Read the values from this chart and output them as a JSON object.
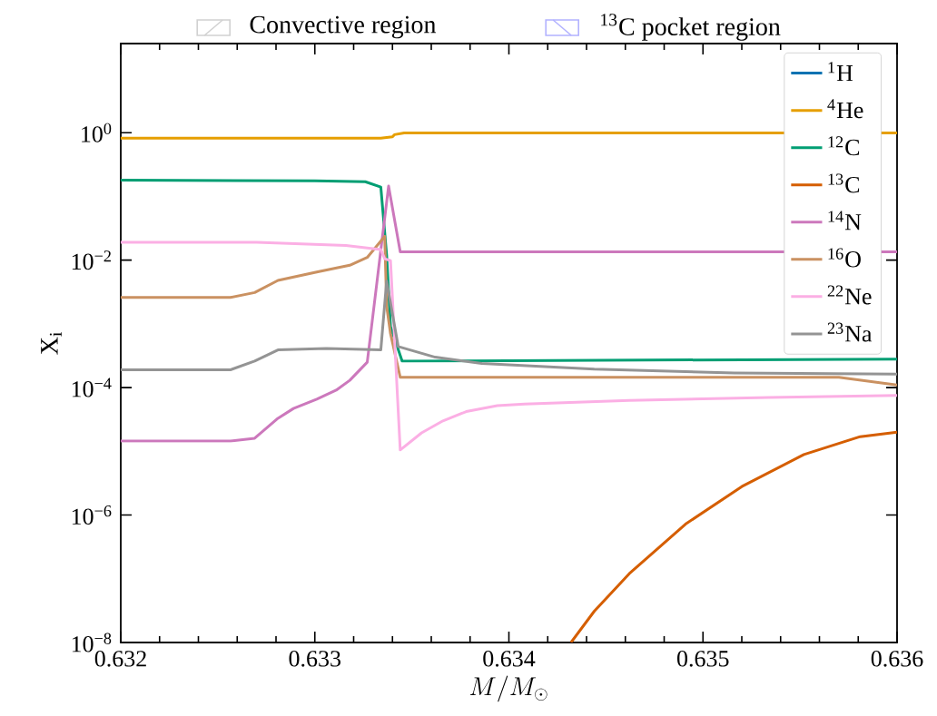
{
  "chart_data": {
    "type": "line",
    "xlabel": "M/M_{\\odot}",
    "ylabel": "X$_{i}$",
    "log": "y",
    "legend": "top right",
    "annotations": [
      "Convective region",
      "$^{13}$C pocket region"
    ],
    "xlim": [
      0.632,
      0.636
    ],
    "ylim": [
      1e-08,
      25
    ],
    "xticks": [
      0.632,
      {
        "value": 0.6322,
        "label": null
      },
      {
        "value": 0.6324,
        "label": null
      },
      {
        "value": 0.6326,
        "label": null
      },
      {
        "value": 0.6328,
        "label": null
      },
      0.633,
      {
        "value": 0.6332,
        "label": null
      },
      {
        "value": 0.6334,
        "label": null
      },
      {
        "value": 0.6336,
        "label": null
      },
      {
        "value": 0.6338,
        "label": null
      },
      0.634,
      {
        "value": 0.6342,
        "label": null
      },
      {
        "value": 0.6344,
        "label": null
      },
      {
        "value": 0.6346,
        "label": null
      },
      {
        "value": 0.6348,
        "label": null
      },
      0.635,
      {
        "value": 0.6352,
        "label": null
      },
      {
        "value": 0.6354,
        "label": null
      },
      {
        "value": 0.6356,
        "label": null
      },
      {
        "value": 0.6358,
        "label": null
      },
      0.636
    ],
    "yticks": [
      {
        "value": 1e-08,
        "label": "10$^{−8}$"
      },
      {
        "value": 1e-06,
        "label": "10$^{−6}$"
      },
      {
        "value": 0.0001,
        "label": "10$^{−4}$"
      },
      {
        "value": 0.01,
        "label": "10$^{−2}$"
      },
      {
        "value": 1,
        "label": "10$^{0}$"
      }
    ],
    "series": [
      {
        "name": "$^{1}$H",
        "color": "#0072b2"
      },
      {
        "name": "$^{4}$He",
        "color": "#e69f00",
        "x": [
          0.632,
          0.63334,
          0.6334,
          0.63341,
          0.63346,
          0.636
        ],
        "values": [
          0.82,
          0.82,
          0.86,
          0.93,
          0.99,
          0.99
        ]
      },
      {
        "name": "$^{12}$C",
        "color": "#009e73",
        "x": [
          0.632,
          0.633,
          0.63326,
          0.63334,
          0.63337,
          0.63339,
          0.63345,
          0.636
        ],
        "values": [
          0.18,
          0.175,
          0.17,
          0.14,
          0.012,
          0.0009,
          0.00026,
          0.00028
        ]
      },
      {
        "name": "$^{13}$C",
        "color": "#d55e00",
        "x": [
          0.63432,
          0.63444,
          0.63462,
          0.63491,
          0.6352,
          0.63552,
          0.63581,
          0.636
        ],
        "values": [
          1e-08,
          3.1e-08,
          1.2e-07,
          7.2e-07,
          2.8e-06,
          8.9e-06,
          1.7e-05,
          2e-05
        ]
      },
      {
        "name": "$^{14}$N",
        "color": "#cc78bc",
        "x": [
          0.632,
          0.632565,
          0.63269,
          0.63281,
          0.63289,
          0.63301,
          0.63311,
          0.63318,
          0.63327,
          0.63338,
          0.63344,
          0.636
        ],
        "values": [
          1.45e-05,
          1.45e-05,
          1.6e-05,
          3.3e-05,
          4.7e-05,
          6.6e-05,
          9.1e-05,
          0.00013,
          0.00025,
          0.145,
          0.0135,
          0.0135
        ]
      },
      {
        "name": "$^{16}$O",
        "color": "#ca9161",
        "x": [
          0.632,
          0.632565,
          0.63269,
          0.63281,
          0.63301,
          0.63318,
          0.63327,
          0.63336,
          0.63337,
          0.63339,
          0.63344,
          0.6357,
          0.636
        ],
        "values": [
          0.0026,
          0.0026,
          0.0031,
          0.0048,
          0.0065,
          0.0083,
          0.011,
          0.0236,
          0.0019,
          0.0007,
          0.000145,
          0.000145,
          0.00011
        ]
      },
      {
        "name": "$^{22}$Ne",
        "color": "#fbafe4",
        "x": [
          0.632,
          0.6327,
          0.63316,
          0.63334,
          0.63336,
          0.63339,
          0.63344,
          0.63355,
          0.63366,
          0.63378,
          0.63394,
          0.63408,
          0.63462,
          0.63534,
          0.636
        ],
        "values": [
          0.019,
          0.019,
          0.017,
          0.0146,
          0.0105,
          0.0098,
          1.05e-05,
          1.95e-05,
          3e-05,
          4.2e-05,
          5.2e-05,
          5.5e-05,
          6.3e-05,
          7e-05,
          7.5e-05
        ]
      },
      {
        "name": "$^{23}$Na",
        "color": "#949494",
        "x": [
          0.632,
          0.632565,
          0.63269,
          0.63281,
          0.63306,
          0.63334,
          0.63337,
          0.63343,
          0.63362,
          0.63386,
          0.63444,
          0.63516,
          0.636
        ],
        "values": [
          0.00019,
          0.00019,
          0.00026,
          0.00039,
          0.00041,
          0.00039,
          0.0047,
          0.00044,
          0.0003,
          0.00024,
          0.000195,
          0.00017,
          0.000163
        ]
      }
    ]
  }
}
